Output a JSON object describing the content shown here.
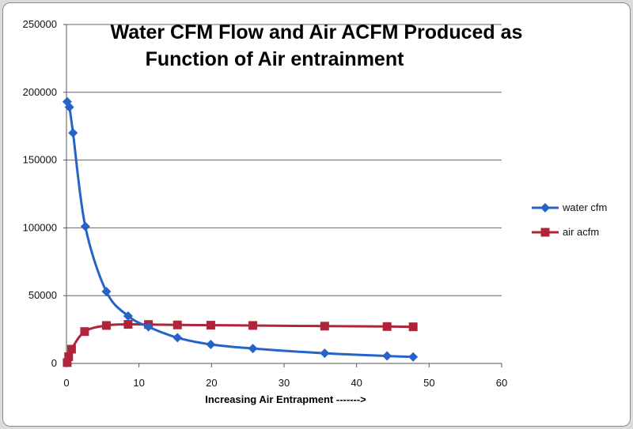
{
  "chart_data": {
    "type": "line",
    "title_lines": [
      "Water CFM Flow and  Air ACFM Produced as",
      "Function of Air entrainment"
    ],
    "xlabel": "Increasing Air Entrapment ------->",
    "ylabel": "",
    "xlim": [
      0,
      60
    ],
    "ylim": [
      0,
      250000
    ],
    "xticks": [
      "0",
      "10",
      "20",
      "30",
      "40",
      "50",
      "60"
    ],
    "yticks": [
      "0",
      "50000",
      "100000",
      "150000",
      "200000",
      "250000"
    ],
    "grid": "horizontal",
    "legend_position": "right",
    "series": [
      {
        "name": "water cfm",
        "color": "#2563c9",
        "marker": "diamond",
        "points": [
          [
            0.1,
            193000
          ],
          [
            0.4,
            189000
          ],
          [
            0.9,
            170000
          ],
          [
            2.6,
            101000
          ],
          [
            5.5,
            53000
          ],
          [
            8.5,
            35000
          ],
          [
            11.3,
            27000
          ],
          [
            15.3,
            19000
          ],
          [
            19.9,
            14000
          ],
          [
            25.7,
            11000
          ],
          [
            35.6,
            7500
          ],
          [
            44.2,
            5500
          ],
          [
            47.8,
            4800
          ]
        ]
      },
      {
        "name": "air acfm",
        "color": "#b0243a",
        "marker": "square",
        "points": [
          [
            0.1,
            600
          ],
          [
            0.3,
            5000
          ],
          [
            0.7,
            10500
          ],
          [
            2.5,
            23500
          ],
          [
            5.5,
            28000
          ],
          [
            8.5,
            28800
          ],
          [
            11.3,
            28700
          ],
          [
            15.3,
            28400
          ],
          [
            19.9,
            28200
          ],
          [
            25.7,
            28000
          ],
          [
            35.6,
            27500
          ],
          [
            44.2,
            27200
          ],
          [
            47.8,
            27000
          ]
        ]
      }
    ]
  }
}
